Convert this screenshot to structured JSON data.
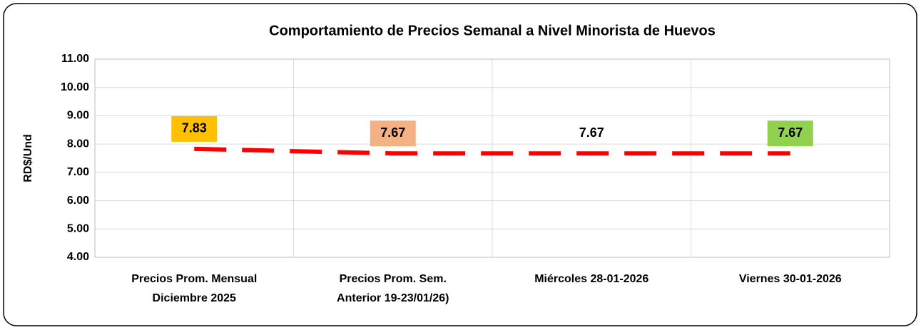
{
  "chart_data": {
    "type": "line",
    "title": "Comportamiento de Precios Semanal a Nivel Minorista de Huevos",
    "y_label": "RD$/Und",
    "categories": [
      "Precios Prom. Mensual\nDiciembre 2025",
      "Precios Prom. Sem.\nAnterior  19-23/01/26)",
      "Miércoles 28-01-2026",
      "Viernes 30-01-2026"
    ],
    "series": [
      {
        "name": "Precio",
        "color": "#ff0000",
        "values": [
          7.83,
          7.67,
          7.67,
          7.67
        ]
      }
    ],
    "label_colors": [
      "#ffc000",
      "#f4b183",
      null,
      "#92d050"
    ],
    "ylim": [
      4,
      11
    ],
    "yticks": [
      {
        "value": 4,
        "label": "4.00"
      },
      {
        "value": 5,
        "label": "5.00"
      },
      {
        "value": 6,
        "label": "6.00"
      },
      {
        "value": 7,
        "label": "7.00"
      },
      {
        "value": 8,
        "label": "8.00"
      },
      {
        "value": 9,
        "label": "9.00"
      },
      {
        "value": 10,
        "label": "10.00"
      },
      {
        "value": 11,
        "label": "11.00"
      }
    ],
    "grid": true
  }
}
